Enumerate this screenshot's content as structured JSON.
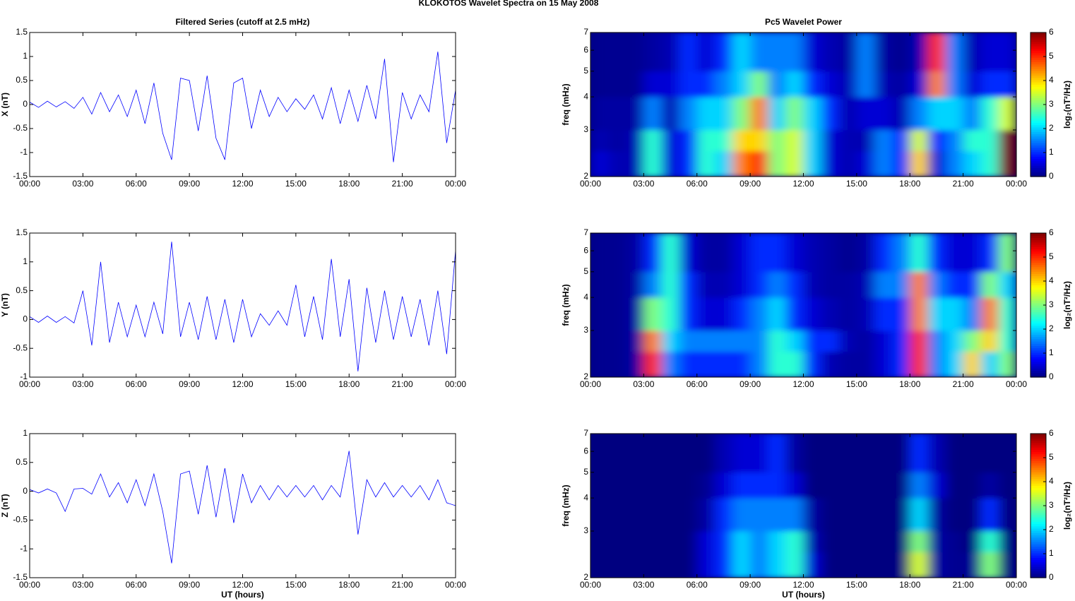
{
  "title": "KLOKOTOS Wavelet Spectra on 15 May      2008",
  "chart_data": [
    {
      "type": "line",
      "title": "Filtered Series (cutoff at 2.5 mHz)",
      "ylabel": "X (nT)",
      "color": "#0000ff",
      "x": [
        0,
        0.5,
        1,
        1.5,
        2,
        2.5,
        3,
        3.5,
        4,
        4.5,
        5,
        5.5,
        6,
        6.5,
        7,
        7.5,
        8,
        8.5,
        9,
        9.5,
        10,
        10.5,
        11,
        11.5,
        12,
        12.5,
        13,
        13.5,
        14,
        14.5,
        15,
        15.5,
        16,
        16.5,
        17,
        17.5,
        18,
        18.5,
        19,
        19.5,
        20,
        20.5,
        21,
        21.5,
        22,
        22.5,
        23,
        23.5,
        24
      ],
      "values": [
        0.05,
        -0.06,
        0.07,
        -0.05,
        0.06,
        -0.08,
        0.15,
        -0.2,
        0.25,
        -0.15,
        0.2,
        -0.25,
        0.3,
        -0.4,
        0.45,
        -0.6,
        -1.15,
        0.55,
        0.5,
        -0.55,
        0.6,
        -0.7,
        -1.15,
        0.45,
        0.55,
        -0.5,
        0.3,
        -0.25,
        0.15,
        -0.15,
        0.12,
        -0.1,
        0.2,
        -0.3,
        0.35,
        -0.4,
        0.3,
        -0.35,
        0.4,
        -0.3,
        0.95,
        -1.2,
        0.25,
        -0.3,
        0.2,
        -0.15,
        1.1,
        -0.8,
        0.3
      ],
      "xlim": [
        0,
        24
      ],
      "xticks": [
        {
          "value": 0,
          "label": "00:00"
        },
        {
          "value": 3,
          "label": "03:00"
        },
        {
          "value": 6,
          "label": "06:00"
        },
        {
          "value": 9,
          "label": "09:00"
        },
        {
          "value": 12,
          "label": "12:00"
        },
        {
          "value": 15,
          "label": "15:00"
        },
        {
          "value": 18,
          "label": "18:00"
        },
        {
          "value": 21,
          "label": "21:00"
        },
        {
          "value": 24,
          "label": "00:00"
        }
      ],
      "ylim": [
        -1.5,
        1.5
      ],
      "yticks": [
        -1.5,
        -1,
        -0.5,
        0,
        0.5,
        1,
        1.5
      ]
    },
    {
      "type": "heatmap",
      "title": "Pc5 Wavelet Power",
      "ylabel": "freq (mHz)",
      "ylog": true,
      "colormap": "jet",
      "xbins": [
        0,
        1,
        2,
        3,
        4,
        5,
        6,
        7,
        8,
        9,
        10,
        11,
        12,
        13,
        14,
        15,
        16,
        17,
        18,
        19,
        20,
        21,
        22,
        23,
        24
      ],
      "ybins": [
        2,
        2.5,
        3,
        4,
        5,
        7
      ],
      "values": [
        [
          0.5,
          0.3,
          0.3,
          2.5,
          0.5,
          1,
          2.5,
          2,
          4.5,
          5,
          3,
          3.5,
          2,
          0.5,
          0.3,
          0.5,
          1.5,
          1,
          4,
          0.5,
          1.5,
          2,
          2.5,
          6
        ],
        [
          0.3,
          0.2,
          0.3,
          2.5,
          0.5,
          1,
          2.5,
          2.5,
          4,
          4,
          3,
          3.5,
          2,
          0.5,
          0.3,
          0.3,
          1.5,
          1,
          3.5,
          0.8,
          1.5,
          2.5,
          2.5,
          6
        ],
        [
          0.2,
          0.2,
          0.2,
          1.5,
          0.3,
          1.5,
          2,
          2,
          3,
          4.5,
          2,
          3,
          2,
          1,
          0.3,
          0.5,
          0.5,
          0.3,
          1.5,
          2,
          2,
          1.5,
          2.5,
          3.5
        ],
        [
          0.1,
          0.1,
          0.1,
          0.5,
          0.5,
          1,
          1,
          1.5,
          2,
          3,
          1.5,
          2,
          1,
          0.5,
          0.3,
          1.5,
          0.3,
          0.2,
          0.5,
          4.5,
          1.5,
          0.5,
          1,
          1
        ],
        [
          0.1,
          0.1,
          0.1,
          0.2,
          0.3,
          1,
          0.5,
          1,
          2,
          1.5,
          1.5,
          1.5,
          0.5,
          0.3,
          0.2,
          1.5,
          0.2,
          0.1,
          0.3,
          5,
          1.5,
          0.3,
          0.5,
          0.5
        ]
      ],
      "xlim": [
        0,
        24
      ],
      "xticks": [
        {
          "value": 0,
          "label": "00:00"
        },
        {
          "value": 3,
          "label": "03:00"
        },
        {
          "value": 6,
          "label": "06:00"
        },
        {
          "value": 9,
          "label": "09:00"
        },
        {
          "value": 12,
          "label": "12:00"
        },
        {
          "value": 15,
          "label": "15:00"
        },
        {
          "value": 18,
          "label": "18:00"
        },
        {
          "value": 21,
          "label": "21:00"
        },
        {
          "value": 24,
          "label": "00:00"
        }
      ],
      "ylim": [
        2,
        7
      ],
      "yticks": [
        2,
        3,
        4,
        5,
        6,
        7
      ],
      "zlim": [
        0,
        6
      ],
      "zticks": [
        0,
        1,
        2,
        3,
        4,
        5,
        6
      ],
      "zlabel": "log₂(nT²/Hz)"
    },
    {
      "type": "line",
      "ylabel": "Y (nT)",
      "color": "#0000ff",
      "x": [
        0,
        0.5,
        1,
        1.5,
        2,
        2.5,
        3,
        3.5,
        4,
        4.5,
        5,
        5.5,
        6,
        6.5,
        7,
        7.5,
        8,
        8.5,
        9,
        9.5,
        10,
        10.5,
        11,
        11.5,
        12,
        12.5,
        13,
        13.5,
        14,
        14.5,
        15,
        15.5,
        16,
        16.5,
        17,
        17.5,
        18,
        18.5,
        19,
        19.5,
        20,
        20.5,
        21,
        21.5,
        22,
        22.5,
        23,
        23.5,
        24
      ],
      "values": [
        0.05,
        -0.05,
        0.06,
        -0.05,
        0.05,
        -0.06,
        0.5,
        -0.45,
        1.0,
        -0.4,
        0.3,
        -0.3,
        0.25,
        -0.3,
        0.3,
        -0.25,
        1.35,
        -0.3,
        0.3,
        -0.35,
        0.4,
        -0.35,
        0.35,
        -0.4,
        0.35,
        -0.3,
        0.1,
        -0.1,
        0.15,
        -0.1,
        0.6,
        -0.3,
        0.4,
        -0.35,
        1.05,
        -0.3,
        0.7,
        -0.9,
        0.55,
        -0.4,
        0.5,
        -0.35,
        0.4,
        -0.3,
        0.35,
        -0.45,
        0.5,
        -0.6,
        1.2
      ],
      "xlim": [
        0,
        24
      ],
      "xticks": [
        {
          "value": 0,
          "label": "00:00"
        },
        {
          "value": 3,
          "label": "03:00"
        },
        {
          "value": 6,
          "label": "06:00"
        },
        {
          "value": 9,
          "label": "09:00"
        },
        {
          "value": 12,
          "label": "12:00"
        },
        {
          "value": 15,
          "label": "15:00"
        },
        {
          "value": 18,
          "label": "18:00"
        },
        {
          "value": 21,
          "label": "21:00"
        },
        {
          "value": 24,
          "label": "00:00"
        }
      ],
      "ylim": [
        -1,
        1.5
      ],
      "yticks": [
        -1,
        -0.5,
        0,
        0.5,
        1,
        1.5
      ]
    },
    {
      "type": "heatmap",
      "ylabel": "freq (mHz)",
      "ylog": true,
      "colormap": "jet",
      "xbins": [
        0,
        1,
        2,
        3,
        4,
        5,
        6,
        7,
        8,
        9,
        10,
        11,
        12,
        13,
        14,
        15,
        16,
        17,
        18,
        19,
        20,
        21,
        22,
        23,
        24
      ],
      "ybins": [
        2,
        2.5,
        3,
        4,
        5,
        7
      ],
      "values": [
        [
          0.1,
          0.1,
          0.2,
          5,
          1.5,
          1,
          1,
          1,
          1,
          1.5,
          2.5,
          2.5,
          1,
          0.3,
          0.2,
          0.2,
          0.5,
          1,
          5,
          1.5,
          2,
          4,
          2,
          3
        ],
        [
          0.1,
          0.1,
          0.2,
          4.5,
          2,
          1.5,
          1.5,
          1.5,
          1.5,
          1.5,
          2.5,
          2,
          1,
          1,
          0.3,
          0.2,
          0.5,
          1,
          5,
          1.5,
          2,
          3,
          4,
          2.5
        ],
        [
          0.1,
          0.1,
          0.2,
          3,
          2.5,
          1,
          0.5,
          0.5,
          1,
          1.5,
          2,
          1,
          0.5,
          0.3,
          0.2,
          0.3,
          1,
          1,
          4.5,
          2,
          2,
          1.5,
          4.5,
          2.5
        ],
        [
          0.1,
          0.1,
          0.2,
          1.5,
          2.5,
          1,
          0.3,
          0.3,
          0.5,
          1,
          1.5,
          1,
          0.3,
          0.2,
          0.2,
          0.3,
          1.5,
          1.5,
          4.5,
          1.5,
          1,
          1,
          3,
          2
        ],
        [
          0.1,
          0.1,
          0.2,
          1,
          2.5,
          0.5,
          0.2,
          0.2,
          0.5,
          1,
          1,
          0.5,
          0.3,
          0.2,
          0.1,
          0.2,
          1,
          1.5,
          2.5,
          1,
          0.5,
          0.5,
          1,
          3
        ]
      ],
      "xlim": [
        0,
        24
      ],
      "xticks": [
        {
          "value": 0,
          "label": "00:00"
        },
        {
          "value": 3,
          "label": "03:00"
        },
        {
          "value": 6,
          "label": "06:00"
        },
        {
          "value": 9,
          "label": "09:00"
        },
        {
          "value": 12,
          "label": "12:00"
        },
        {
          "value": 15,
          "label": "15:00"
        },
        {
          "value": 18,
          "label": "18:00"
        },
        {
          "value": 21,
          "label": "21:00"
        },
        {
          "value": 24,
          "label": "00:00"
        }
      ],
      "ylim": [
        2,
        7
      ],
      "yticks": [
        2,
        3,
        4,
        5,
        6,
        7
      ],
      "zlim": [
        0,
        6
      ],
      "zticks": [
        0,
        1,
        2,
        3,
        4,
        5,
        6
      ],
      "zlabel": "log₂(nT²/Hz)"
    },
    {
      "type": "line",
      "ylabel": "Z (nT)",
      "xlabel": "UT (hours)",
      "color": "#0000ff",
      "x": [
        0,
        0.5,
        1,
        1.5,
        2,
        2.5,
        3,
        3.5,
        4,
        4.5,
        5,
        5.5,
        6,
        6.5,
        7,
        7.5,
        8,
        8.5,
        9,
        9.5,
        10,
        10.5,
        11,
        11.5,
        12,
        12.5,
        13,
        13.5,
        14,
        14.5,
        15,
        15.5,
        16,
        16.5,
        17,
        17.5,
        18,
        18.5,
        19,
        19.5,
        20,
        20.5,
        21,
        21.5,
        22,
        22.5,
        23,
        23.5,
        24
      ],
      "values": [
        0.03,
        -0.03,
        0.04,
        -0.03,
        -0.35,
        0.04,
        0.05,
        -0.05,
        0.3,
        -0.1,
        0.15,
        -0.2,
        0.2,
        -0.25,
        0.3,
        -0.35,
        -1.25,
        0.3,
        0.35,
        -0.4,
        0.45,
        -0.45,
        0.4,
        -0.55,
        0.3,
        -0.2,
        0.1,
        -0.15,
        0.1,
        -0.1,
        0.1,
        -0.1,
        0.1,
        -0.15,
        0.1,
        -0.1,
        0.7,
        -0.75,
        0.2,
        -0.1,
        0.15,
        -0.1,
        0.1,
        -0.1,
        0.1,
        -0.15,
        0.2,
        -0.2,
        -0.25
      ],
      "xlim": [
        0,
        24
      ],
      "xticks": [
        {
          "value": 0,
          "label": "00:00"
        },
        {
          "value": 3,
          "label": "03:00"
        },
        {
          "value": 6,
          "label": "06:00"
        },
        {
          "value": 9,
          "label": "09:00"
        },
        {
          "value": 12,
          "label": "12:00"
        },
        {
          "value": 15,
          "label": "15:00"
        },
        {
          "value": 18,
          "label": "18:00"
        },
        {
          "value": 21,
          "label": "21:00"
        },
        {
          "value": 24,
          "label": "00:00"
        }
      ],
      "ylim": [
        -1.5,
        1
      ],
      "yticks": [
        -1.5,
        -1,
        -0.5,
        0,
        0.5,
        1
      ]
    },
    {
      "type": "heatmap",
      "ylabel": "freq (mHz)",
      "xlabel": "UT (hours)",
      "ylog": true,
      "colormap": "jet",
      "xbins": [
        0,
        1,
        2,
        3,
        4,
        5,
        6,
        7,
        8,
        9,
        10,
        11,
        12,
        13,
        14,
        15,
        16,
        17,
        18,
        19,
        20,
        21,
        22,
        23,
        24
      ],
      "ybins": [
        2,
        2.5,
        3,
        4,
        5,
        7
      ],
      "values": [
        [
          0,
          0,
          0,
          0,
          0,
          0,
          0.5,
          1,
          2,
          1.5,
          2,
          2.5,
          0.5,
          0,
          0,
          0,
          0,
          0,
          3.5,
          0.2,
          0.1,
          0.1,
          3,
          0
        ],
        [
          0,
          0,
          0,
          0,
          0,
          0,
          0.5,
          1,
          2,
          1.5,
          2,
          2.5,
          0.3,
          0,
          0,
          0,
          0,
          0,
          3,
          0.2,
          0.1,
          0,
          2.5,
          0
        ],
        [
          0,
          0,
          0,
          0,
          0,
          0,
          0.2,
          1,
          1.5,
          1.5,
          1.5,
          1.5,
          0.2,
          0,
          0,
          0,
          0,
          0,
          2,
          0.2,
          0,
          0,
          1,
          0
        ],
        [
          0,
          0,
          0,
          0,
          0,
          0,
          0.1,
          0.5,
          1,
          1,
          1,
          0.5,
          0,
          0,
          0,
          0,
          0,
          0,
          1.5,
          0.5,
          0,
          0,
          0.2,
          0
        ],
        [
          0,
          0,
          0,
          0,
          0,
          0,
          0,
          0.3,
          0.5,
          0.5,
          1,
          0.2,
          0,
          0,
          0,
          0,
          0,
          0,
          1,
          0.3,
          0,
          0,
          0,
          0
        ]
      ],
      "xlim": [
        0,
        24
      ],
      "xticks": [
        {
          "value": 0,
          "label": "00:00"
        },
        {
          "value": 3,
          "label": "03:00"
        },
        {
          "value": 6,
          "label": "06:00"
        },
        {
          "value": 9,
          "label": "09:00"
        },
        {
          "value": 12,
          "label": "12:00"
        },
        {
          "value": 15,
          "label": "15:00"
        },
        {
          "value": 18,
          "label": "18:00"
        },
        {
          "value": 21,
          "label": "21:00"
        },
        {
          "value": 24,
          "label": "00:00"
        }
      ],
      "ylim": [
        2,
        7
      ],
      "yticks": [
        2,
        3,
        4,
        5,
        6,
        7
      ],
      "zlim": [
        0,
        6
      ],
      "zticks": [
        0,
        1,
        2,
        3,
        4,
        5,
        6
      ],
      "zlabel": "log₂(nT²/Hz)"
    }
  ]
}
